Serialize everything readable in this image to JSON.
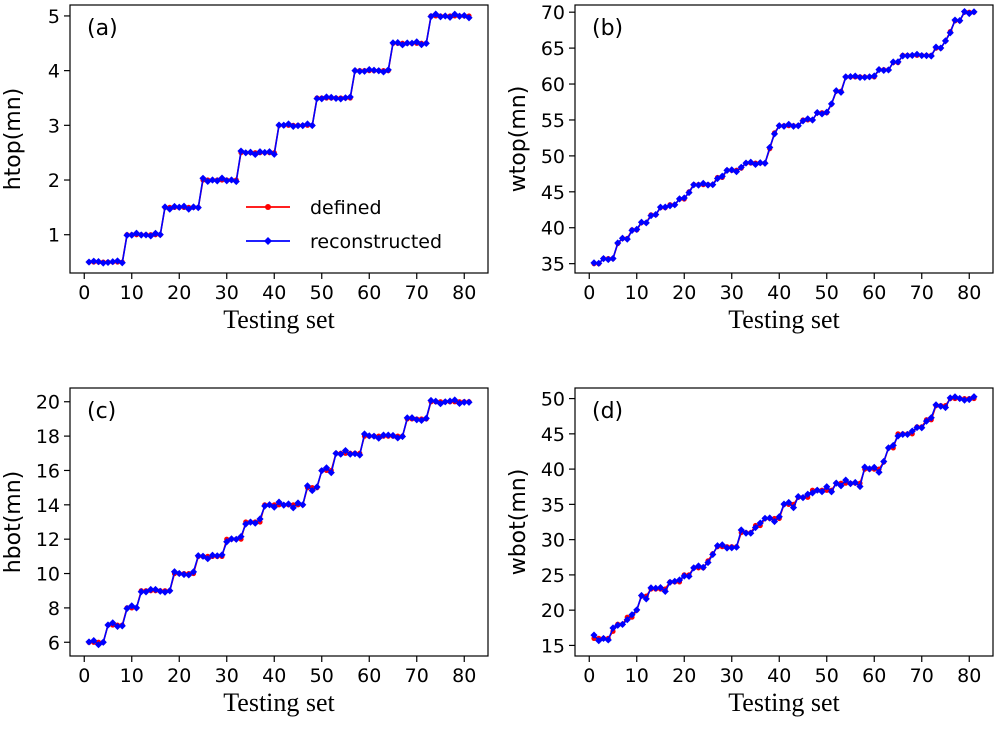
{
  "colors": {
    "defined": "#ff0000",
    "reconstructed": "#0000ff",
    "axes": "#000000"
  },
  "legend": {
    "defined": "defined",
    "reconstructed": "reconstructed",
    "panel": "a",
    "placement": "center-right"
  },
  "chart_data": [
    {
      "type": "line",
      "tag": "(a)",
      "xlabel": "Testing set",
      "ylabel": "htop(mn)",
      "xlim": [
        -3,
        85
      ],
      "ylim": [
        0.3,
        5.2
      ],
      "xticks": [
        0,
        10,
        20,
        30,
        40,
        50,
        60,
        70,
        80
      ],
      "yticks": [
        1,
        2,
        3,
        4,
        5
      ],
      "steps": [
        [
          1,
          8,
          0.5
        ],
        [
          9,
          16,
          1.0
        ],
        [
          17,
          24,
          1.5
        ],
        [
          25,
          32,
          2.0
        ],
        [
          33,
          40,
          2.5
        ],
        [
          41,
          48,
          3.0
        ],
        [
          49,
          56,
          3.5
        ],
        [
          57,
          64,
          4.0
        ],
        [
          65,
          72,
          4.5
        ],
        [
          73,
          81,
          5.0
        ]
      ],
      "noise": 0.035,
      "series": [
        {
          "name": "defined"
        },
        {
          "name": "reconstructed"
        }
      ]
    },
    {
      "type": "line",
      "tag": "(b)",
      "xlabel": "Testing set",
      "ylabel": "wtop(mn)",
      "xlim": [
        -3,
        85
      ],
      "ylim": [
        33.7,
        71
      ],
      "xticks": [
        0,
        10,
        20,
        30,
        40,
        50,
        60,
        70,
        80
      ],
      "yticks": [
        35,
        40,
        45,
        50,
        55,
        60,
        65,
        70
      ],
      "steps": [
        [
          1,
          2,
          35
        ],
        [
          3,
          5,
          35.7
        ],
        [
          6,
          6,
          37.8
        ],
        [
          7,
          8,
          38.5
        ],
        [
          9,
          10,
          39.7
        ],
        [
          11,
          12,
          40.7
        ],
        [
          13,
          14,
          41.8
        ],
        [
          15,
          16,
          42.8
        ],
        [
          17,
          18,
          43.2
        ],
        [
          19,
          20,
          44
        ],
        [
          21,
          21,
          45
        ],
        [
          22,
          26,
          46
        ],
        [
          27,
          28,
          47
        ],
        [
          29,
          31,
          48
        ],
        [
          32,
          32,
          48.3
        ],
        [
          33,
          37,
          49
        ],
        [
          38,
          38,
          51
        ],
        [
          39,
          39,
          53.2
        ],
        [
          40,
          44,
          54.2
        ],
        [
          45,
          47,
          55
        ],
        [
          48,
          50,
          56
        ],
        [
          51,
          51,
          57.2
        ],
        [
          52,
          53,
          59
        ],
        [
          54,
          60,
          61
        ],
        [
          61,
          63,
          62
        ],
        [
          64,
          65,
          63
        ],
        [
          66,
          72,
          64
        ],
        [
          73,
          74,
          65
        ],
        [
          75,
          75,
          66
        ],
        [
          76,
          76,
          67.3
        ],
        [
          77,
          78,
          68.8
        ],
        [
          79,
          81,
          70
        ]
      ],
      "noise": 0.2,
      "series": [
        {
          "name": "defined"
        },
        {
          "name": "reconstructed"
        }
      ]
    },
    {
      "type": "line",
      "tag": "(c)",
      "xlabel": "Testing set",
      "ylabel": "hbot(mn)",
      "xlim": [
        -3,
        85
      ],
      "ylim": [
        5.2,
        20.8
      ],
      "xticks": [
        0,
        10,
        20,
        30,
        40,
        50,
        60,
        70,
        80
      ],
      "yticks": [
        6,
        8,
        10,
        12,
        14,
        16,
        18,
        20
      ],
      "steps": [
        [
          1,
          4,
          6
        ],
        [
          5,
          8,
          7
        ],
        [
          9,
          11,
          8
        ],
        [
          12,
          18,
          9
        ],
        [
          19,
          23,
          10
        ],
        [
          24,
          29,
          11
        ],
        [
          30,
          33,
          12
        ],
        [
          34,
          37,
          13
        ],
        [
          38,
          46,
          14
        ],
        [
          47,
          49,
          15
        ],
        [
          50,
          52,
          16
        ],
        [
          53,
          58,
          17
        ],
        [
          59,
          67,
          18
        ],
        [
          68,
          72,
          19
        ],
        [
          73,
          81,
          20
        ]
      ],
      "noise": 0.18,
      "series": [
        {
          "name": "defined"
        },
        {
          "name": "reconstructed"
        }
      ]
    },
    {
      "type": "line",
      "tag": "(d)",
      "xlabel": "Testing set",
      "ylabel": "wbot(mn)",
      "xlim": [
        -3,
        85
      ],
      "ylim": [
        13.5,
        51.5
      ],
      "xticks": [
        0,
        10,
        20,
        30,
        40,
        50,
        60,
        70,
        80
      ],
      "yticks": [
        15,
        20,
        25,
        30,
        35,
        40,
        45,
        50
      ],
      "steps": [
        [
          1,
          4,
          16
        ],
        [
          5,
          5,
          17
        ],
        [
          6,
          7,
          18
        ],
        [
          8,
          9,
          19
        ],
        [
          10,
          10,
          20
        ],
        [
          11,
          12,
          22
        ],
        [
          13,
          16,
          23
        ],
        [
          17,
          19,
          24
        ],
        [
          20,
          21,
          25
        ],
        [
          22,
          24,
          26
        ],
        [
          25,
          25,
          27
        ],
        [
          26,
          26,
          28
        ],
        [
          27,
          31,
          29
        ],
        [
          32,
          34,
          31
        ],
        [
          35,
          36,
          32
        ],
        [
          37,
          40,
          33
        ],
        [
          41,
          43,
          35
        ],
        [
          44,
          46,
          36
        ],
        [
          47,
          51,
          37
        ],
        [
          52,
          57,
          38
        ],
        [
          58,
          61,
          40
        ],
        [
          62,
          62,
          41
        ],
        [
          63,
          64,
          43
        ],
        [
          65,
          68,
          45
        ],
        [
          69,
          70,
          46
        ],
        [
          71,
          72,
          47
        ],
        [
          73,
          75,
          49
        ],
        [
          76,
          81,
          50
        ]
      ],
      "noise": 0.5,
      "series": [
        {
          "name": "defined"
        },
        {
          "name": "reconstructed"
        }
      ]
    }
  ]
}
